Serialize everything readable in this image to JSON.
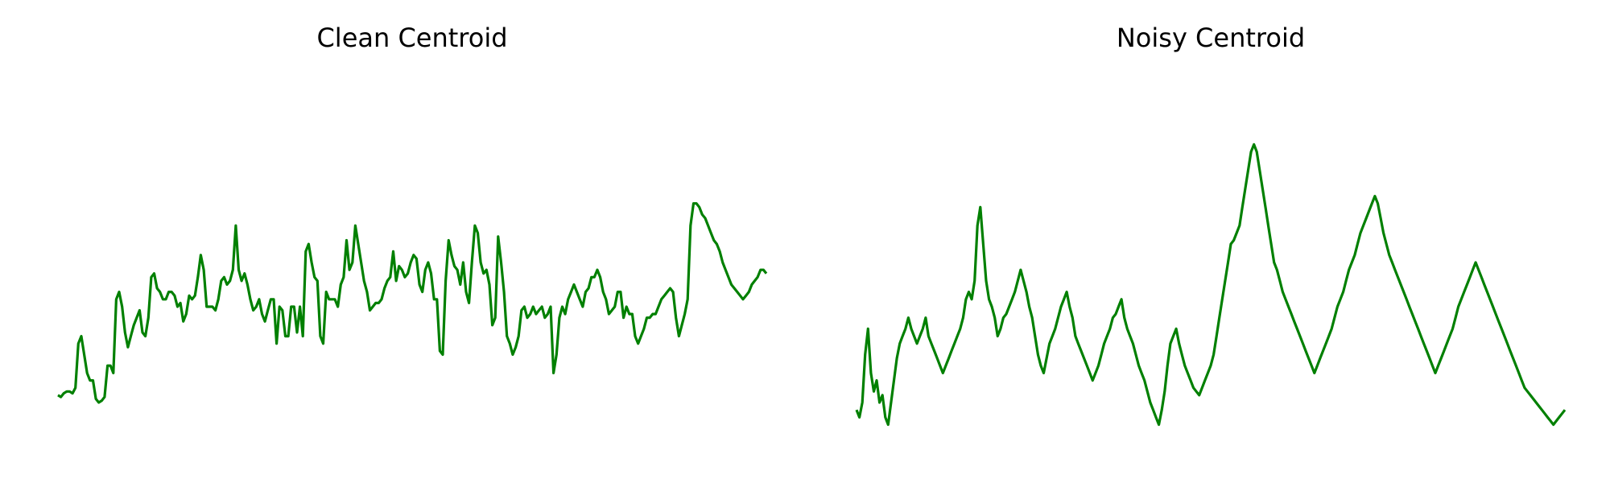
{
  "chart_data": [
    {
      "type": "line",
      "title": "Clean Centroid",
      "xlabel": "",
      "ylabel": "",
      "axes_visible": false,
      "grid": false,
      "color": "#008000",
      "series": [
        {
          "values": [
            0.14,
            0.135,
            0.145,
            0.15,
            0.15,
            0.145,
            0.16,
            0.28,
            0.3,
            0.25,
            0.2,
            0.18,
            0.18,
            0.13,
            0.12,
            0.125,
            0.135,
            0.22,
            0.22,
            0.2,
            0.4,
            0.42,
            0.38,
            0.31,
            0.27,
            0.3,
            0.33,
            0.35,
            0.37,
            0.31,
            0.3,
            0.35,
            0.46,
            0.47,
            0.43,
            0.42,
            0.4,
            0.4,
            0.42,
            0.42,
            0.41,
            0.38,
            0.39,
            0.34,
            0.36,
            0.41,
            0.4,
            0.41,
            0.46,
            0.52,
            0.48,
            0.38,
            0.38,
            0.38,
            0.37,
            0.4,
            0.45,
            0.46,
            0.44,
            0.45,
            0.48,
            0.6,
            0.48,
            0.45,
            0.47,
            0.44,
            0.4,
            0.37,
            0.38,
            0.4,
            0.36,
            0.34,
            0.37,
            0.4,
            0.4,
            0.28,
            0.38,
            0.37,
            0.3,
            0.3,
            0.38,
            0.38,
            0.31,
            0.38,
            0.3,
            0.53,
            0.55,
            0.5,
            0.46,
            0.45,
            0.3,
            0.28,
            0.42,
            0.4,
            0.4,
            0.4,
            0.38,
            0.44,
            0.46,
            0.56,
            0.48,
            0.5,
            0.6,
            0.55,
            0.5,
            0.45,
            0.42,
            0.37,
            0.38,
            0.39,
            0.39,
            0.4,
            0.43,
            0.45,
            0.46,
            0.53,
            0.45,
            0.49,
            0.48,
            0.46,
            0.47,
            0.5,
            0.52,
            0.51,
            0.44,
            0.42,
            0.48,
            0.5,
            0.47,
            0.4,
            0.4,
            0.26,
            0.25,
            0.45,
            0.56,
            0.52,
            0.49,
            0.48,
            0.44,
            0.5,
            0.42,
            0.39,
            0.5,
            0.6,
            0.58,
            0.5,
            0.47,
            0.48,
            0.44,
            0.33,
            0.35,
            0.57,
            0.5,
            0.42,
            0.3,
            0.28,
            0.25,
            0.27,
            0.3,
            0.37,
            0.38,
            0.35,
            0.36,
            0.38,
            0.36,
            0.37,
            0.38,
            0.35,
            0.36,
            0.38,
            0.2,
            0.25,
            0.35,
            0.38,
            0.36,
            0.4,
            0.42,
            0.44,
            0.42,
            0.4,
            0.38,
            0.42,
            0.43,
            0.46,
            0.46,
            0.48,
            0.46,
            0.42,
            0.4,
            0.36,
            0.37,
            0.38,
            0.42,
            0.42,
            0.35,
            0.38,
            0.36,
            0.36,
            0.3,
            0.28,
            0.3,
            0.32,
            0.35,
            0.35,
            0.36,
            0.36,
            0.38,
            0.4,
            0.41,
            0.42,
            0.43,
            0.42,
            0.35,
            0.3,
            0.33,
            0.36,
            0.4,
            0.6,
            0.66,
            0.66,
            0.65,
            0.63,
            0.62,
            0.6,
            0.58,
            0.56,
            0.55,
            0.53,
            0.5,
            0.48,
            0.46,
            0.44,
            0.43,
            0.42,
            0.41,
            0.4,
            0.41,
            0.42,
            0.44,
            0.45,
            0.46,
            0.48,
            0.48,
            0.47
          ]
        }
      ],
      "x_range": [
        0,
        256
      ],
      "y_range": [
        0,
        1
      ]
    },
    {
      "type": "line",
      "title": "Noisy Centroid",
      "xlabel": "",
      "ylabel": "",
      "axes_visible": false,
      "grid": false,
      "color": "#008000",
      "series": [
        {
          "values": [
            0.1,
            0.08,
            0.12,
            0.25,
            0.32,
            0.2,
            0.15,
            0.18,
            0.12,
            0.14,
            0.08,
            0.06,
            0.12,
            0.18,
            0.24,
            0.28,
            0.3,
            0.32,
            0.35,
            0.32,
            0.3,
            0.28,
            0.3,
            0.32,
            0.35,
            0.3,
            0.28,
            0.26,
            0.24,
            0.22,
            0.2,
            0.22,
            0.24,
            0.26,
            0.28,
            0.3,
            0.32,
            0.35,
            0.4,
            0.42,
            0.4,
            0.45,
            0.6,
            0.65,
            0.55,
            0.45,
            0.4,
            0.38,
            0.35,
            0.3,
            0.32,
            0.35,
            0.36,
            0.38,
            0.4,
            0.42,
            0.45,
            0.48,
            0.45,
            0.42,
            0.38,
            0.35,
            0.3,
            0.25,
            0.22,
            0.2,
            0.24,
            0.28,
            0.3,
            0.32,
            0.35,
            0.38,
            0.4,
            0.42,
            0.38,
            0.35,
            0.3,
            0.28,
            0.26,
            0.24,
            0.22,
            0.2,
            0.18,
            0.2,
            0.22,
            0.25,
            0.28,
            0.3,
            0.32,
            0.35,
            0.36,
            0.38,
            0.4,
            0.35,
            0.32,
            0.3,
            0.28,
            0.25,
            0.22,
            0.2,
            0.18,
            0.15,
            0.12,
            0.1,
            0.08,
            0.06,
            0.1,
            0.15,
            0.22,
            0.28,
            0.3,
            0.32,
            0.28,
            0.25,
            0.22,
            0.2,
            0.18,
            0.16,
            0.15,
            0.14,
            0.16,
            0.18,
            0.2,
            0.22,
            0.25,
            0.3,
            0.35,
            0.4,
            0.45,
            0.5,
            0.55,
            0.56,
            0.58,
            0.6,
            0.65,
            0.7,
            0.75,
            0.8,
            0.82,
            0.8,
            0.75,
            0.7,
            0.65,
            0.6,
            0.55,
            0.5,
            0.48,
            0.45,
            0.42,
            0.4,
            0.38,
            0.36,
            0.34,
            0.32,
            0.3,
            0.28,
            0.26,
            0.24,
            0.22,
            0.2,
            0.22,
            0.24,
            0.26,
            0.28,
            0.3,
            0.32,
            0.35,
            0.38,
            0.4,
            0.42,
            0.45,
            0.48,
            0.5,
            0.52,
            0.55,
            0.58,
            0.6,
            0.62,
            0.64,
            0.66,
            0.68,
            0.66,
            0.62,
            0.58,
            0.55,
            0.52,
            0.5,
            0.48,
            0.46,
            0.44,
            0.42,
            0.4,
            0.38,
            0.36,
            0.34,
            0.32,
            0.3,
            0.28,
            0.26,
            0.24,
            0.22,
            0.2,
            0.22,
            0.24,
            0.26,
            0.28,
            0.3,
            0.32,
            0.35,
            0.38,
            0.4,
            0.42,
            0.44,
            0.46,
            0.48,
            0.5,
            0.48,
            0.46,
            0.44,
            0.42,
            0.4,
            0.38,
            0.36,
            0.34,
            0.32,
            0.3,
            0.28,
            0.26,
            0.24,
            0.22,
            0.2,
            0.18,
            0.16,
            0.15,
            0.14,
            0.13,
            0.12,
            0.11,
            0.1,
            0.09,
            0.08,
            0.07,
            0.06,
            0.07,
            0.08,
            0.09,
            0.1
          ]
        }
      ],
      "x_range": [
        0,
        256
      ],
      "y_range": [
        0,
        1
      ]
    }
  ]
}
